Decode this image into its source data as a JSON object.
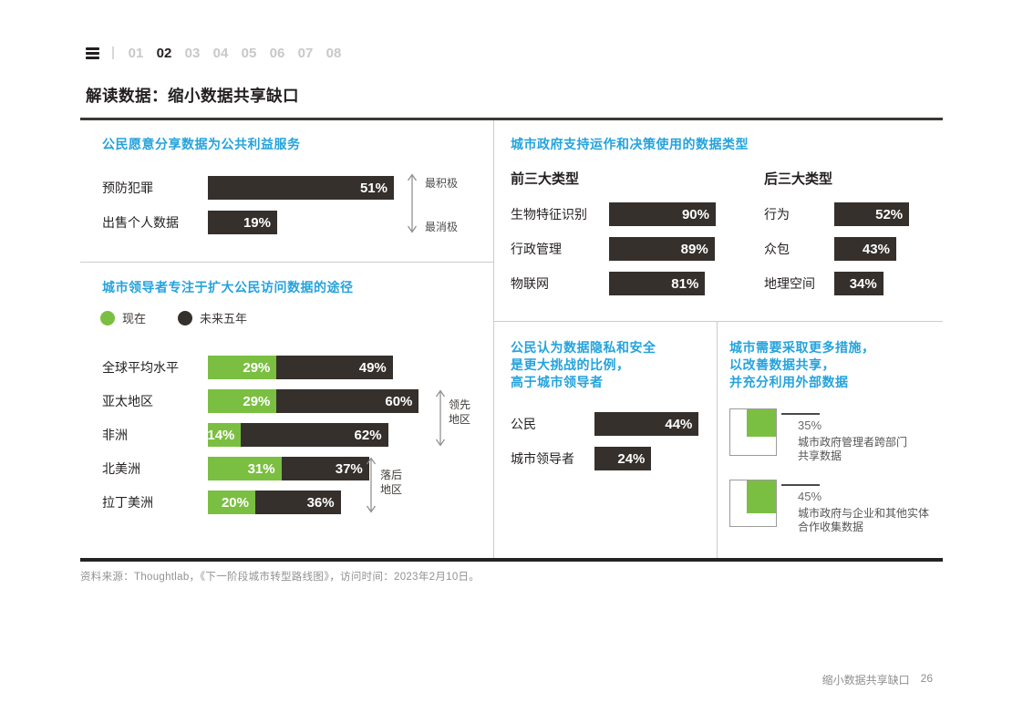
{
  "header": {
    "nav_pages": [
      "01",
      "02",
      "03",
      "04",
      "05",
      "06",
      "07",
      "08"
    ],
    "active_page": "02",
    "page_title": "解读数据：缩小数据共享缺口"
  },
  "panels": {
    "willingness": {
      "title": "公民愿意分享数据为公共利益服务",
      "bars": [
        {
          "label": "预防犯罪",
          "pct": 51
        },
        {
          "label": "出售个人数据",
          "pct": 19
        }
      ],
      "axis_top": "最积极",
      "axis_bottom": "最消极"
    },
    "data_types": {
      "title": "城市政府支持运作和决策使用的数据类型",
      "top3": {
        "heading": "前三大类型",
        "bars": [
          {
            "label": "生物特征识别",
            "pct": 90
          },
          {
            "label": "行政管理",
            "pct": 89
          },
          {
            "label": "物联网",
            "pct": 81
          }
        ]
      },
      "bottom3": {
        "heading": "后三大类型",
        "bars": [
          {
            "label": "行为",
            "pct": 52
          },
          {
            "label": "众包",
            "pct": 43
          },
          {
            "label": "地理空间",
            "pct": 34
          }
        ]
      }
    },
    "access": {
      "title": "城市领导者专注于扩大公民访问数据的途径",
      "legend": [
        {
          "label": "现在",
          "color": "#7bbf42"
        },
        {
          "label": "未来五年",
          "color": "#35302c"
        }
      ],
      "rows": [
        {
          "label": "全球平均水平",
          "now": 29,
          "future": 49
        },
        {
          "label": "亚太地区",
          "now": 29,
          "future": 60
        },
        {
          "label": "非洲",
          "now": 14,
          "future": 62
        },
        {
          "label": "北美洲",
          "now": 31,
          "future": 37
        },
        {
          "label": "拉丁美洲",
          "now": 20,
          "future": 36
        }
      ],
      "annotation_leading": "领先地区",
      "annotation_lagging": "落后地区"
    },
    "privacy": {
      "title_lines": [
        "公民认为数据隐私和安全",
        "是更大挑战的比例，",
        "高于城市领导者"
      ],
      "bars": [
        {
          "label": "公民",
          "pct": 44
        },
        {
          "label": "城市领导者",
          "pct": 24
        }
      ]
    },
    "measures": {
      "title_lines": [
        "城市需要采取更多措施，",
        "以改善数据共享，",
        "并充分利用外部数据"
      ],
      "items": [
        {
          "pct": 35,
          "desc_lines": [
            "城市政府管理者跨部门",
            "共享数据"
          ]
        },
        {
          "pct": 45,
          "desc_lines": [
            "城市政府与企业和其他实体",
            "合作收集数据"
          ]
        }
      ]
    }
  },
  "footer": {
    "source": "资料来源：Thoughtlab，《下一阶段城市转型路线图》，访问时间：2023年2月10日。",
    "page_label": "缩小数据共享缺口",
    "page_number": "26"
  },
  "colors": {
    "accent_blue": "#25a3dc",
    "bar_green": "#7bbf42",
    "bar_dark": "#35302c",
    "inactive_gray": "#c8c8c8",
    "footer_gray": "#8f8f8f"
  },
  "chart_data": [
    {
      "type": "bar",
      "orientation": "horizontal",
      "title": "公民愿意分享数据为公共利益服务",
      "categories": [
        "预防犯罪",
        "出售个人数据"
      ],
      "values": [
        51,
        19
      ],
      "unit": "%",
      "annotations": [
        "最积极",
        "最消极"
      ]
    },
    {
      "type": "bar",
      "orientation": "horizontal",
      "title": "城市政府支持运作和决策使用的数据类型",
      "groups": [
        {
          "name": "前三大类型",
          "categories": [
            "生物特征识别",
            "行政管理",
            "物联网"
          ],
          "values": [
            90,
            89,
            81
          ]
        },
        {
          "name": "后三大类型",
          "categories": [
            "行为",
            "众包",
            "地理空间"
          ],
          "values": [
            52,
            43,
            34
          ]
        }
      ],
      "unit": "%"
    },
    {
      "type": "bar",
      "orientation": "horizontal",
      "stacked": true,
      "title": "城市领导者专注于扩大公民访问数据的途径",
      "categories": [
        "全球平均水平",
        "亚太地区",
        "非洲",
        "北美洲",
        "拉丁美洲"
      ],
      "series": [
        {
          "name": "现在",
          "values": [
            29,
            29,
            14,
            31,
            20
          ]
        },
        {
          "name": "未来五年",
          "values": [
            49,
            60,
            62,
            37,
            36
          ]
        }
      ],
      "unit": "%",
      "annotations": [
        {
          "label": "领先地区",
          "rows": [
            "亚太地区",
            "非洲"
          ]
        },
        {
          "label": "落后地区",
          "rows": [
            "北美洲",
            "拉丁美洲"
          ]
        }
      ],
      "legend_position": "top"
    },
    {
      "type": "bar",
      "orientation": "horizontal",
      "title": "公民认为数据隐私和安全是更大挑战的比例，高于城市领导者",
      "categories": [
        "公民",
        "城市领导者"
      ],
      "values": [
        44,
        24
      ],
      "unit": "%"
    },
    {
      "type": "pictograph",
      "title": "城市需要采取更多措施，以改善数据共享，并充分利用外部数据",
      "items": [
        {
          "label": "城市政府管理者跨部门共享数据",
          "value": 35
        },
        {
          "label": "城市政府与企业和其他实体合作收集数据",
          "value": 45
        }
      ],
      "unit": "%"
    }
  ]
}
